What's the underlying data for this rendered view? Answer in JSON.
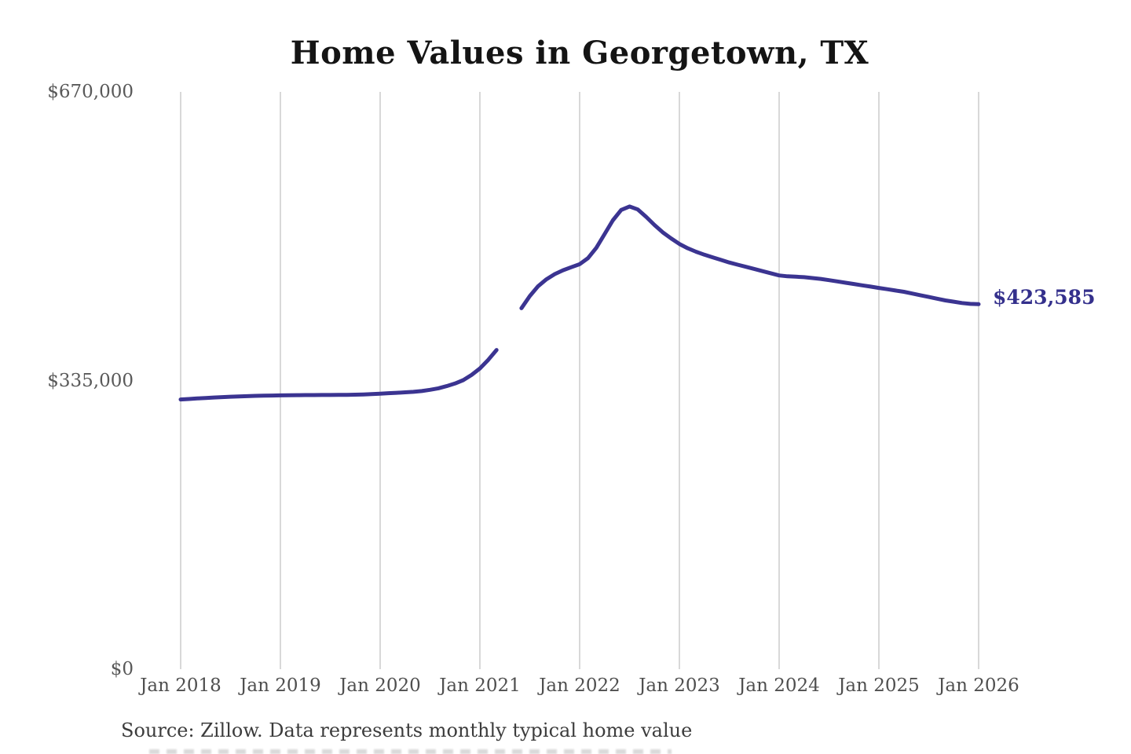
{
  "title": "Home Values in Georgetown, TX",
  "source_note": "Source: Zillow. Data represents monthly typical home value",
  "colors": {
    "line": "#3b3491",
    "end_label": "#34308c",
    "gridline": "#cccccc",
    "title": "#141414",
    "axis_labels": "#4f4f4f",
    "background": "#ffffff"
  },
  "chart_data": {
    "type": "line",
    "title": "Home Values in Georgetown, TX",
    "xlabel": "",
    "ylabel": "",
    "legend": "none",
    "grid": "vertical-only",
    "x_tick_labels": [
      "Jan 2018",
      "Jan 2019",
      "Jan 2020",
      "Jan 2021",
      "Jan 2022",
      "Jan 2023",
      "Jan 2024",
      "Jan 2025",
      "Jan 2026"
    ],
    "y_ticks": [
      {
        "label": "$670,000",
        "value": 670000
      },
      {
        "label": "$335,000",
        "value": 335000
      },
      {
        "label": "$0",
        "value": 0
      }
    ],
    "ylim": [
      0,
      670000
    ],
    "start_month": "Jan 2018",
    "end_month": "Jan 2026",
    "frequency": "monthly",
    "data_gap_months": [
      "Apr 2021",
      "May 2021"
    ],
    "end_label": "$423,585",
    "end_value": 423585,
    "series": [
      {
        "name": "Typical home value",
        "color": "#3b3491",
        "values": [
          313000,
          313600,
          314200,
          314800,
          315300,
          315800,
          316200,
          316600,
          316900,
          317200,
          317400,
          317600,
          317800,
          317900,
          318000,
          318100,
          318100,
          318200,
          318200,
          318300,
          318400,
          318600,
          318900,
          319300,
          319800,
          320300,
          320800,
          321300,
          321900,
          322800,
          324200,
          326000,
          328500,
          331500,
          335500,
          341500,
          349000,
          359000,
          370500,
          null,
          null,
          419000,
          433000,
          444500,
          452500,
          458500,
          463000,
          466500,
          470000,
          477000,
          489000,
          505000,
          521000,
          533000,
          537000,
          533500,
          525000,
          515500,
          507000,
          500000,
          493500,
          488500,
          484500,
          481000,
          478000,
          475000,
          472000,
          469500,
          467000,
          464500,
          462000,
          459500,
          457000,
          456000,
          455500,
          455000,
          454000,
          453000,
          451500,
          450000,
          448500,
          447000,
          445500,
          444000,
          442500,
          441000,
          439500,
          438000,
          436000,
          434000,
          432000,
          430000,
          428000,
          426500,
          425000,
          424000,
          423585
        ]
      }
    ]
  }
}
